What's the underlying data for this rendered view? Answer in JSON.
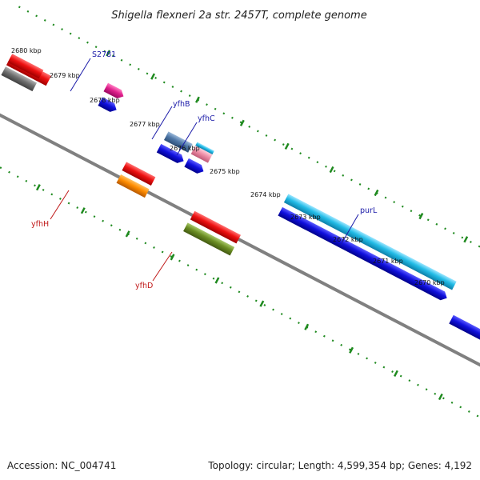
{
  "title": "Shigella flexneri 2a str. 2457T, complete genome",
  "footer": {
    "accession": "Accession: NC_004741",
    "summary": "Topology: circular; Length: 4,599,354 bp; Genes: 4,192"
  },
  "ruler": {
    "ticks": [
      "2680 kbp",
      "2679 kbp",
      "2678 kbp",
      "2677 kbp",
      "2676 kbp",
      "2675 kbp",
      "2674 kbp",
      "2673 kbp",
      "2672 kbp",
      "2671 kbp",
      "2670 kbp"
    ]
  },
  "gene_labels": [
    "S2781",
    "yfhB",
    "yfhC",
    "purL",
    "yfhH",
    "yfhD"
  ],
  "colors": {
    "backbone": "#808080",
    "tick_green": "#1f8a1f",
    "forward_red": "#ee1111",
    "forward_blue": "#1010dd",
    "cyan": "#22bbe6",
    "steel_blue": "#4f78a8",
    "pink": "#ef8fa8",
    "magenta": "#e0208c",
    "orange": "#ff8c00",
    "olive": "#6b8e23",
    "gray": "#707070",
    "label_blue": "#1a1aa8",
    "label_red": "#c01818"
  }
}
